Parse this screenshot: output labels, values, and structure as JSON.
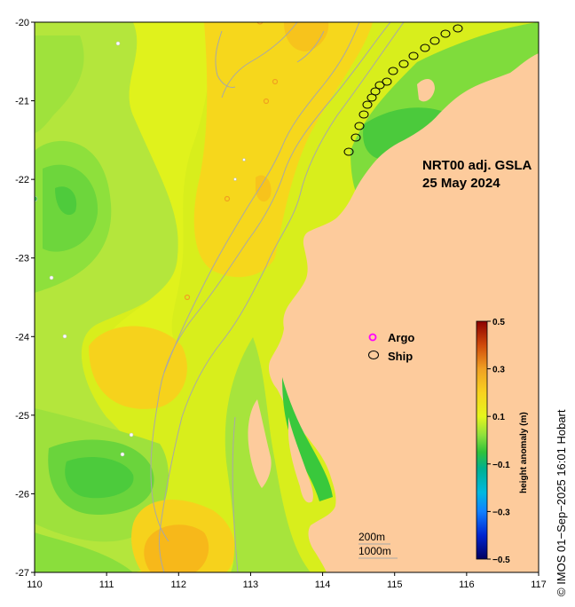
{
  "map": {
    "title_line1": "NRT00 adj. GSLA",
    "title_line2": "25 May 2024",
    "x_ticks": [
      "110",
      "111",
      "112",
      "113",
      "114",
      "115",
      "116",
      "117"
    ],
    "y_ticks": [
      "-20",
      "-21",
      "-22",
      "-23",
      "-24",
      "-25",
      "-26",
      "-27"
    ],
    "x_range": [
      110,
      117
    ],
    "y_range": [
      -27,
      -20
    ],
    "colors": {
      "land": "#fdcb9c",
      "ocean_lime": "#e6f51c",
      "ocean_yellow": "#d2ed1c",
      "ocean_orange": "#f9cf1c",
      "ocean_deep_orange": "#f8b41a",
      "ocean_light_green": "#a9e63c",
      "ocean_green": "#72dc3c",
      "ocean_dark_green": "#39c83c",
      "contour_line": "#a8a8a8",
      "argo_marker": "#ff00ff",
      "ship_marker": "#000000"
    }
  },
  "legend": {
    "argo_label": "Argo",
    "ship_label": "Ship"
  },
  "colorbar": {
    "title": "height anomaly (m)",
    "tick_labels": [
      "0.5",
      "0.3",
      "0.1",
      "−0.1",
      "−0.3",
      "−0.5"
    ],
    "tick_values": [
      0.5,
      0.3,
      0.1,
      -0.1,
      -0.3,
      -0.5
    ],
    "range": [
      -0.5,
      0.5
    ]
  },
  "scale": {
    "label_200m": "200m",
    "label_1000m": "1000m"
  },
  "credit": "© IMOS 01−Sep−2025 16:01 Hobart"
}
